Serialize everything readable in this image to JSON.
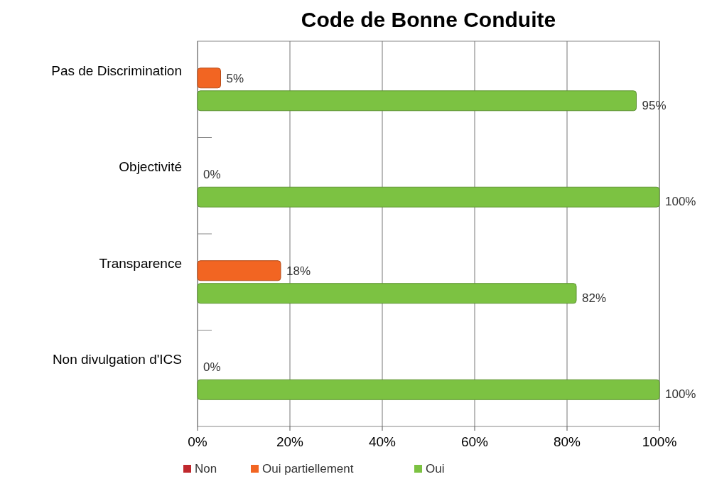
{
  "chart_data": {
    "type": "bar",
    "orientation": "horizontal",
    "title": "Code de Bonne Conduite",
    "categories": [
      "Pas de Discrimination",
      "Objectivité",
      "Transparence",
      "Non divulgation d'ICS"
    ],
    "series": [
      {
        "name": "Non",
        "color": "#c0282d",
        "values": [
          0,
          0,
          0,
          0
        ]
      },
      {
        "name": "Oui partiellement",
        "color": "#f26522",
        "values": [
          5,
          0,
          18,
          0
        ],
        "value_labels": [
          "5%",
          "0%",
          "18%",
          "0%"
        ]
      },
      {
        "name": "Oui",
        "color": "#7cc242",
        "values": [
          95,
          100,
          82,
          100
        ],
        "value_labels": [
          "95%",
          "100%",
          "82%",
          "100%"
        ]
      }
    ],
    "xlim": [
      0,
      100
    ],
    "xticks": [
      {
        "value": 0,
        "label": "0%"
      },
      {
        "value": 20,
        "label": "20%"
      },
      {
        "value": 40,
        "label": "40%"
      },
      {
        "value": 60,
        "label": "60%"
      },
      {
        "value": 80,
        "label": "80%"
      },
      {
        "value": 100,
        "label": "100%"
      }
    ],
    "grid": "x",
    "legend": "bottom"
  }
}
